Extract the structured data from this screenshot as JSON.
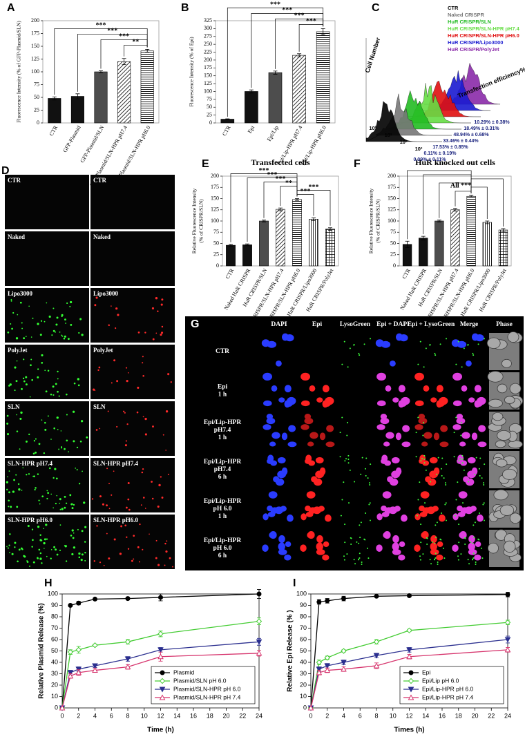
{
  "chart_data": [
    {
      "type": "bar",
      "letter": "A",
      "y_label": "Fluorescence Intensity (% of GFP-Plasmid/SLN)",
      "categories": [
        "CTR",
        "GFP-Plasmid",
        "GFP-Plasmid/SLN",
        "GFP-Plasmid/SLN-HPR pH7.4",
        "GFP-Plasmid/SLN-HPR pH6.0"
      ],
      "values": [
        48,
        52,
        100,
        120,
        141
      ],
      "errors": [
        3,
        5,
        2,
        6,
        3
      ],
      "fills": [
        "#111111",
        "#111111",
        "#4d4d4d",
        "diagonal",
        "horizontal"
      ],
      "ylim": [
        0,
        200
      ],
      "yticks": [
        0,
        25,
        50,
        75,
        100,
        125,
        150,
        175,
        200
      ],
      "significance": [
        {
          "from": 0,
          "to": 4,
          "label": "***"
        },
        {
          "from": 1,
          "to": 4,
          "label": "***"
        },
        {
          "from": 2,
          "to": 4,
          "label": "***"
        },
        {
          "from": 3,
          "to": 4,
          "label": "**"
        }
      ]
    },
    {
      "type": "bar",
      "letter": "B",
      "y_label": "Fluorescence Intensity (% of Epi)",
      "categories": [
        "CTR",
        "Epi",
        "Epi/Lip",
        "Epi/Lip-HPR pH7.4",
        "Epi/Lip-HPR pH6.0"
      ],
      "values": [
        12,
        100,
        160,
        215,
        290
      ],
      "errors": [
        1,
        5,
        5,
        5,
        10
      ],
      "fills": [
        "#111111",
        "#111111",
        "#4d4d4d",
        "diagonal",
        "horizontal"
      ],
      "ylim": [
        0,
        325
      ],
      "yticks": [
        0,
        25,
        50,
        75,
        100,
        125,
        150,
        175,
        200,
        225,
        250,
        275,
        300,
        325
      ],
      "significance": [
        {
          "from": 0,
          "to": 4,
          "label": "***"
        },
        {
          "from": 1,
          "to": 4,
          "label": "***"
        },
        {
          "from": 2,
          "to": 4,
          "label": "***"
        },
        {
          "from": 3,
          "to": 4,
          "label": "***"
        }
      ]
    },
    {
      "type": "bar",
      "letter": "E",
      "title": "Transfected cells",
      "y_label": [
        "Relative Fluorescence Intensity",
        "(% of CRISPR/SLN)"
      ],
      "categories": [
        "CTR",
        "Naked HuR CRISPR",
        "HuR CRISPR/SLN",
        "HuR CRISPR/SLN-HPR pH7.4",
        "HuR CRISPR/SLN-HPR pH6.0",
        "HuR CRISPR/Lipo3000",
        "HuR CRISPR/PolyJet"
      ],
      "values": [
        46,
        47,
        100,
        126,
        148,
        104,
        82
      ],
      "errors": [
        2,
        2,
        2,
        3,
        2,
        3,
        3
      ],
      "fills": [
        "#111111",
        "#111111",
        "#4d4d4d",
        "diagonal",
        "horizontal",
        "vertical",
        "crosshatch"
      ],
      "ylim": [
        0,
        200
      ],
      "yticks": [
        0,
        25,
        50,
        75,
        100,
        125,
        150,
        175,
        200
      ],
      "significance": [
        {
          "from": 0,
          "to": 4,
          "label": "***"
        },
        {
          "from": 1,
          "to": 4,
          "label": "***"
        },
        {
          "from": 2,
          "to": 4,
          "label": "***"
        },
        {
          "from": 3,
          "to": 4,
          "label": "**"
        },
        {
          "from": 4,
          "to": 6,
          "label": "***"
        },
        {
          "from": 4,
          "to": 5,
          "label": "***"
        }
      ]
    },
    {
      "type": "bar",
      "letter": "F",
      "title": "HuR knocked out cells",
      "annotation": "All ***",
      "y_label": [
        "Relative Fluorescence Intensity",
        "(% of CRISPR/SLN)"
      ],
      "categories": [
        "CTR",
        "Naked HuR CRISPR",
        "HuR CRISPR/SLN",
        "HuR CRISPR/SLN-HPR pH7.4",
        "HuR CRISPR/SLN-HPR pH6.0",
        "HuR CRISPR/Lipo3000",
        "HuR CRISPR/PolyJet"
      ],
      "values": [
        48,
        62,
        100,
        125,
        155,
        97,
        80
      ],
      "errors": [
        7,
        4,
        2,
        3,
        2,
        3,
        3
      ],
      "fills": [
        "#111111",
        "#111111",
        "#4d4d4d",
        "diagonal",
        "horizontal",
        "vertical",
        "crosshatch"
      ],
      "ylim": [
        0,
        200
      ],
      "yticks": [
        0,
        25,
        50,
        75,
        100,
        125,
        150,
        175,
        200
      ],
      "significance": [
        {
          "from": 0,
          "to": 4
        },
        {
          "from": 1,
          "to": 4
        },
        {
          "from": 4,
          "to": 6
        },
        {
          "from": 2,
          "to": 4
        },
        {
          "from": 4,
          "to": 5
        },
        {
          "from": 3,
          "to": 4
        }
      ]
    },
    {
      "type": "line",
      "letter": "H",
      "x_label": "Time (h)",
      "y_label": "Relative Plasmid Release (%)",
      "x": [
        0,
        1,
        2,
        4,
        8,
        12,
        24
      ],
      "xlim": [
        0,
        24
      ],
      "xticks": [
        0,
        2,
        4,
        6,
        8,
        10,
        12,
        14,
        16,
        18,
        20,
        22,
        24
      ],
      "ylim": [
        0,
        100
      ],
      "yticks": [
        0,
        10,
        20,
        30,
        40,
        50,
        60,
        70,
        80,
        90,
        100
      ],
      "legend": "lower right",
      "series": [
        {
          "name": "Plasmid",
          "color": "#000000",
          "marker": "circle-filled",
          "values": [
            0,
            90,
            92,
            95.5,
            96,
            97,
            100
          ],
          "errors": [
            0,
            1,
            1.5,
            1,
            1,
            3,
            4
          ]
        },
        {
          "name": "Plasmid/SLN pH 6.0",
          "color": "#44cc33",
          "marker": "diamond-open",
          "values": [
            0,
            49,
            51,
            55,
            58,
            65,
            76
          ],
          "errors": [
            0,
            2,
            3,
            1,
            2,
            2.5,
            3
          ]
        },
        {
          "name": "Plasmid/SLN-HPR pH 6.0",
          "color": "#2b2f8f",
          "marker": "triangle-down-filled",
          "values": [
            0,
            31,
            34,
            37,
            43,
            51,
            58
          ],
          "errors": [
            0,
            2,
            2,
            1.5,
            2,
            2,
            3
          ]
        },
        {
          "name": "Plasmid/SLN-HPR pH 7.4",
          "color": "#d6336c",
          "marker": "triangle-up-open",
          "values": [
            0,
            28,
            31,
            33,
            36,
            45,
            48
          ],
          "errors": [
            0,
            2,
            2.5,
            1.5,
            2,
            4,
            2.5
          ]
        }
      ]
    },
    {
      "type": "line",
      "letter": "I",
      "x_label": "Times (h)",
      "y_label": "Relative Epi Release (% )",
      "x": [
        0,
        1,
        2,
        4,
        8,
        12,
        24
      ],
      "xlim": [
        0,
        24
      ],
      "xticks": [
        0,
        2,
        4,
        6,
        8,
        10,
        12,
        14,
        16,
        18,
        20,
        22,
        24
      ],
      "ylim": [
        0,
        100
      ],
      "yticks": [
        0,
        10,
        20,
        30,
        40,
        50,
        60,
        70,
        80,
        90,
        100
      ],
      "legend": "lower right",
      "series": [
        {
          "name": "Epi",
          "color": "#000000",
          "marker": "circle-filled",
          "values": [
            0,
            93,
            94,
            96,
            98,
            98.5,
            99.5
          ],
          "errors": [
            0,
            2,
            2,
            2,
            0.5,
            1,
            2
          ]
        },
        {
          "name": "Epi/Lip pH 6.0",
          "color": "#44cc33",
          "marker": "diamond-open",
          "values": [
            0,
            40,
            44,
            50,
            58,
            68,
            75
          ],
          "errors": [
            0,
            2,
            1.5,
            1,
            2,
            1,
            2
          ]
        },
        {
          "name": "Epi/Lip-HPR pH 6.0",
          "color": "#2b2f8f",
          "marker": "triangle-down-filled",
          "values": [
            0,
            34,
            37,
            40,
            46,
            51,
            60
          ],
          "errors": [
            0,
            2,
            2,
            2,
            2,
            2,
            3
          ]
        },
        {
          "name": "Epi/Lip-HPR pH 7.4",
          "color": "#d6336c",
          "marker": "triangle-up-open",
          "values": [
            0,
            31,
            33,
            34,
            37,
            45,
            51
          ],
          "errors": [
            0,
            2,
            2,
            2,
            2.5,
            2,
            2
          ]
        }
      ]
    }
  ],
  "panel_c": {
    "letter": "C",
    "legend": [
      {
        "name": "CTR",
        "color": "#000000"
      },
      {
        "name": "Naked CRISPR",
        "color": "#777777"
      },
      {
        "name": "HuR CRISPR/SLN",
        "color": "#22bb22"
      },
      {
        "name": "HuR CRISPR/SLN-HPR pH7.4",
        "color": "#66dd44"
      },
      {
        "name": "HuR CRISPR/SLN-HPR pH6.0",
        "color": "#e01010"
      },
      {
        "name": "HuR CRISPR/Lipo3000",
        "color": "#1a1ad0"
      },
      {
        "name": "HuR CRISPR/PolyJet",
        "color": "#8a2aa8"
      }
    ],
    "efficiencies": [
      "10.29% ± 0.38%",
      "18.49% ± 0.31%",
      "48.94% ± 0.68%",
      "33.46% ± 0.44%",
      "17.53% ± 0.85%",
      "0.11% ± 0.19%",
      "0.09% ± 0.11%"
    ],
    "y_label": "Cell Number",
    "x_label": "Transfection efficiency%",
    "tick_labels": [
      "10⁰",
      "10¹",
      "10²",
      "10³"
    ]
  },
  "panel_d": {
    "letter": "D",
    "rows": [
      [
        "CTR",
        "CTR"
      ],
      [
        "Naked",
        "Naked"
      ],
      [
        "Lipo3000",
        "Lipo3000"
      ],
      [
        "PolyJet",
        "PolyJet"
      ],
      [
        "SLN",
        "SLN"
      ],
      [
        "SLN-HPR pH7.4",
        "SLN-HPR pH7.4"
      ],
      [
        "SLN-HPR pH6.0",
        "SLN-HPR pH6.0"
      ]
    ]
  },
  "panel_g": {
    "letter": "G",
    "columns": [
      "DAPI",
      "Epi",
      "LysoGreen",
      "Epi + DAPI",
      "Epi + LysoGreen",
      "Merge",
      "Phase"
    ],
    "rows": [
      [
        "CTR"
      ],
      [
        "Epi",
        "1 h"
      ],
      [
        "Epi/Lip-HPR",
        "pH7.4",
        "1 h"
      ],
      [
        "Epi/Lip-HPR",
        "pH7.4",
        "6 h"
      ],
      [
        "Epi/Lip-HPR",
        "pH 6.0",
        "1 h"
      ],
      [
        "Epi/Lip-HPR",
        "pH 6.0",
        "6 h"
      ]
    ]
  }
}
